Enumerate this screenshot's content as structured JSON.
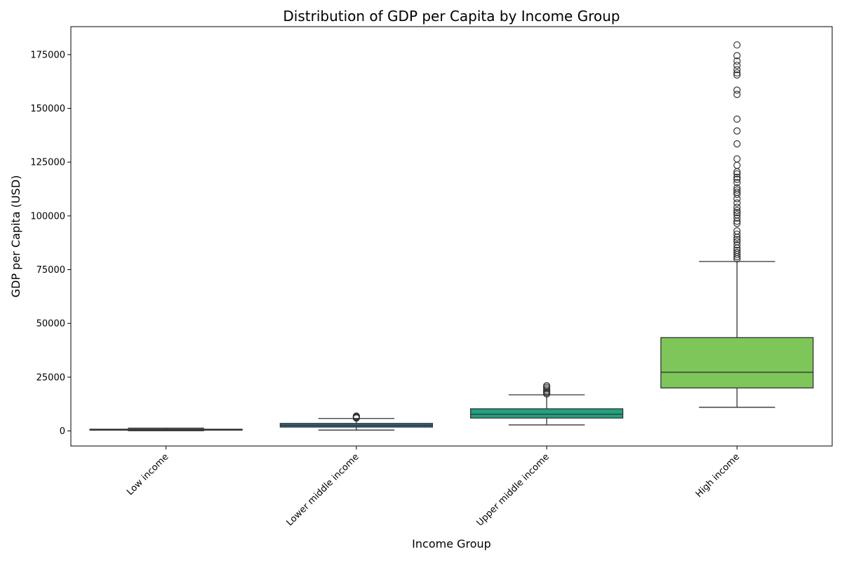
{
  "chart_data": {
    "type": "box",
    "title": "Distribution of GDP per Capita by Income Group",
    "xlabel": "Income Group",
    "ylabel": "GDP per Capita (USD)",
    "ylim": [
      -7000,
      188000
    ],
    "yticks": [
      0,
      25000,
      50000,
      75000,
      100000,
      125000,
      150000,
      175000
    ],
    "ytick_labels": [
      "0",
      "25000",
      "50000",
      "75000",
      "100000",
      "125000",
      "150000",
      "175000"
    ],
    "grid": false,
    "categories": [
      "Low income",
      "Lower middle income",
      "Upper middle income",
      "High income"
    ],
    "boxes": [
      {
        "category": "Low income",
        "color": "#3b4b8a",
        "whisker_low": 100,
        "q1": 350,
        "median": 550,
        "q3": 800,
        "whisker_high": 1300,
        "outliers": []
      },
      {
        "category": "Lower middle income",
        "color": "#2e6f8e",
        "whisker_low": 400,
        "q1": 1800,
        "median": 2600,
        "q3": 3500,
        "whisker_high": 5800,
        "outliers": [
          6000,
          6300,
          6600,
          6900
        ]
      },
      {
        "category": "Upper middle income",
        "color": "#22a07f",
        "whisker_low": 2800,
        "q1": 6000,
        "median": 7800,
        "q3": 10300,
        "whisker_high": 16800,
        "outliers": [
          17200,
          17800,
          18300,
          18900,
          19600,
          20300,
          21000
        ]
      },
      {
        "category": "High income",
        "color": "#7ec65a",
        "whisker_low": 11000,
        "q1": 20000,
        "median": 27300,
        "q3": 43400,
        "whisker_high": 78800,
        "outliers": [
          80000,
          81000,
          82000,
          83000,
          84000,
          85000,
          86500,
          88000,
          89000,
          90000,
          91500,
          93000,
          96500,
          97500,
          99000,
          100500,
          101500,
          102500,
          104000,
          106000,
          108000,
          110000,
          111000,
          112000,
          113000,
          115500,
          117000,
          118000,
          119500,
          120500,
          123500,
          126500,
          133500,
          139500,
          145000,
          156500,
          158500,
          165500,
          166500,
          168000,
          170000,
          172000,
          174500,
          179500
        ]
      }
    ]
  }
}
